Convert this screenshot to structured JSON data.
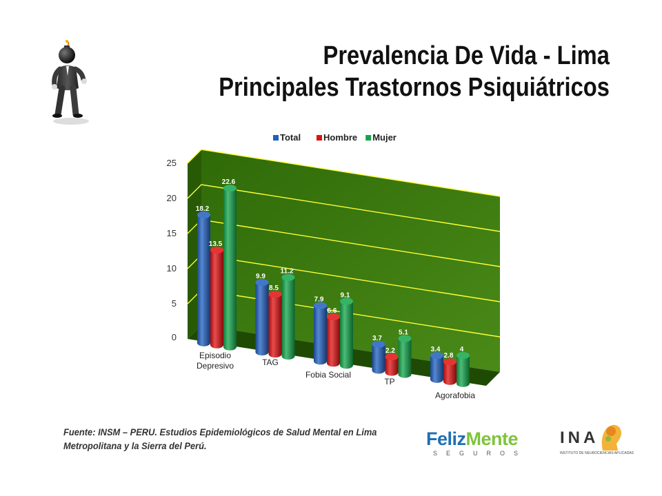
{
  "title": {
    "line1": "Prevalencia De Vida - Lima",
    "line2": "Principales Trastornos Psiquiátricos"
  },
  "source": {
    "line1": "Fuente: INSM – PERU. Estudios Epidemiológicos de Salud Mental en Lima",
    "line2": "Metropolitana  y la Sierra del Perú."
  },
  "logos": {
    "feliz": "Feliz",
    "mente": "Mente",
    "seguros": "SEGUROS",
    "ina": "INA",
    "ina_sub": "INSTITUTO DE NEUROCIENCIAS APLICADAS"
  },
  "icons": {
    "figure": "stick-figure-bomb-head-icon"
  },
  "chart_data": {
    "type": "bar",
    "style": "3d-cylinder",
    "categories": [
      "Episodio Depresivo",
      "TAG",
      "Fobia Social",
      "TP",
      "Agorafobia"
    ],
    "series": [
      {
        "name": "Total",
        "color": "#1f5fc0",
        "values": [
          18.2,
          9.9,
          7.9,
          3.7,
          3.4
        ]
      },
      {
        "name": "Hombre",
        "color": "#e01010",
        "values": [
          13.5,
          8.5,
          6.6,
          2.2,
          2.8
        ]
      },
      {
        "name": "Mujer",
        "color": "#12a54a",
        "values": [
          22.6,
          11.2,
          9.1,
          5.1,
          4
        ]
      }
    ],
    "ylim": [
      0,
      25
    ],
    "yticks": [
      0,
      5,
      10,
      15,
      20,
      25
    ],
    "grid": true,
    "gridline_color": "#ffff33",
    "wall_color": "#3d7a10",
    "legend_position": "top-center"
  }
}
